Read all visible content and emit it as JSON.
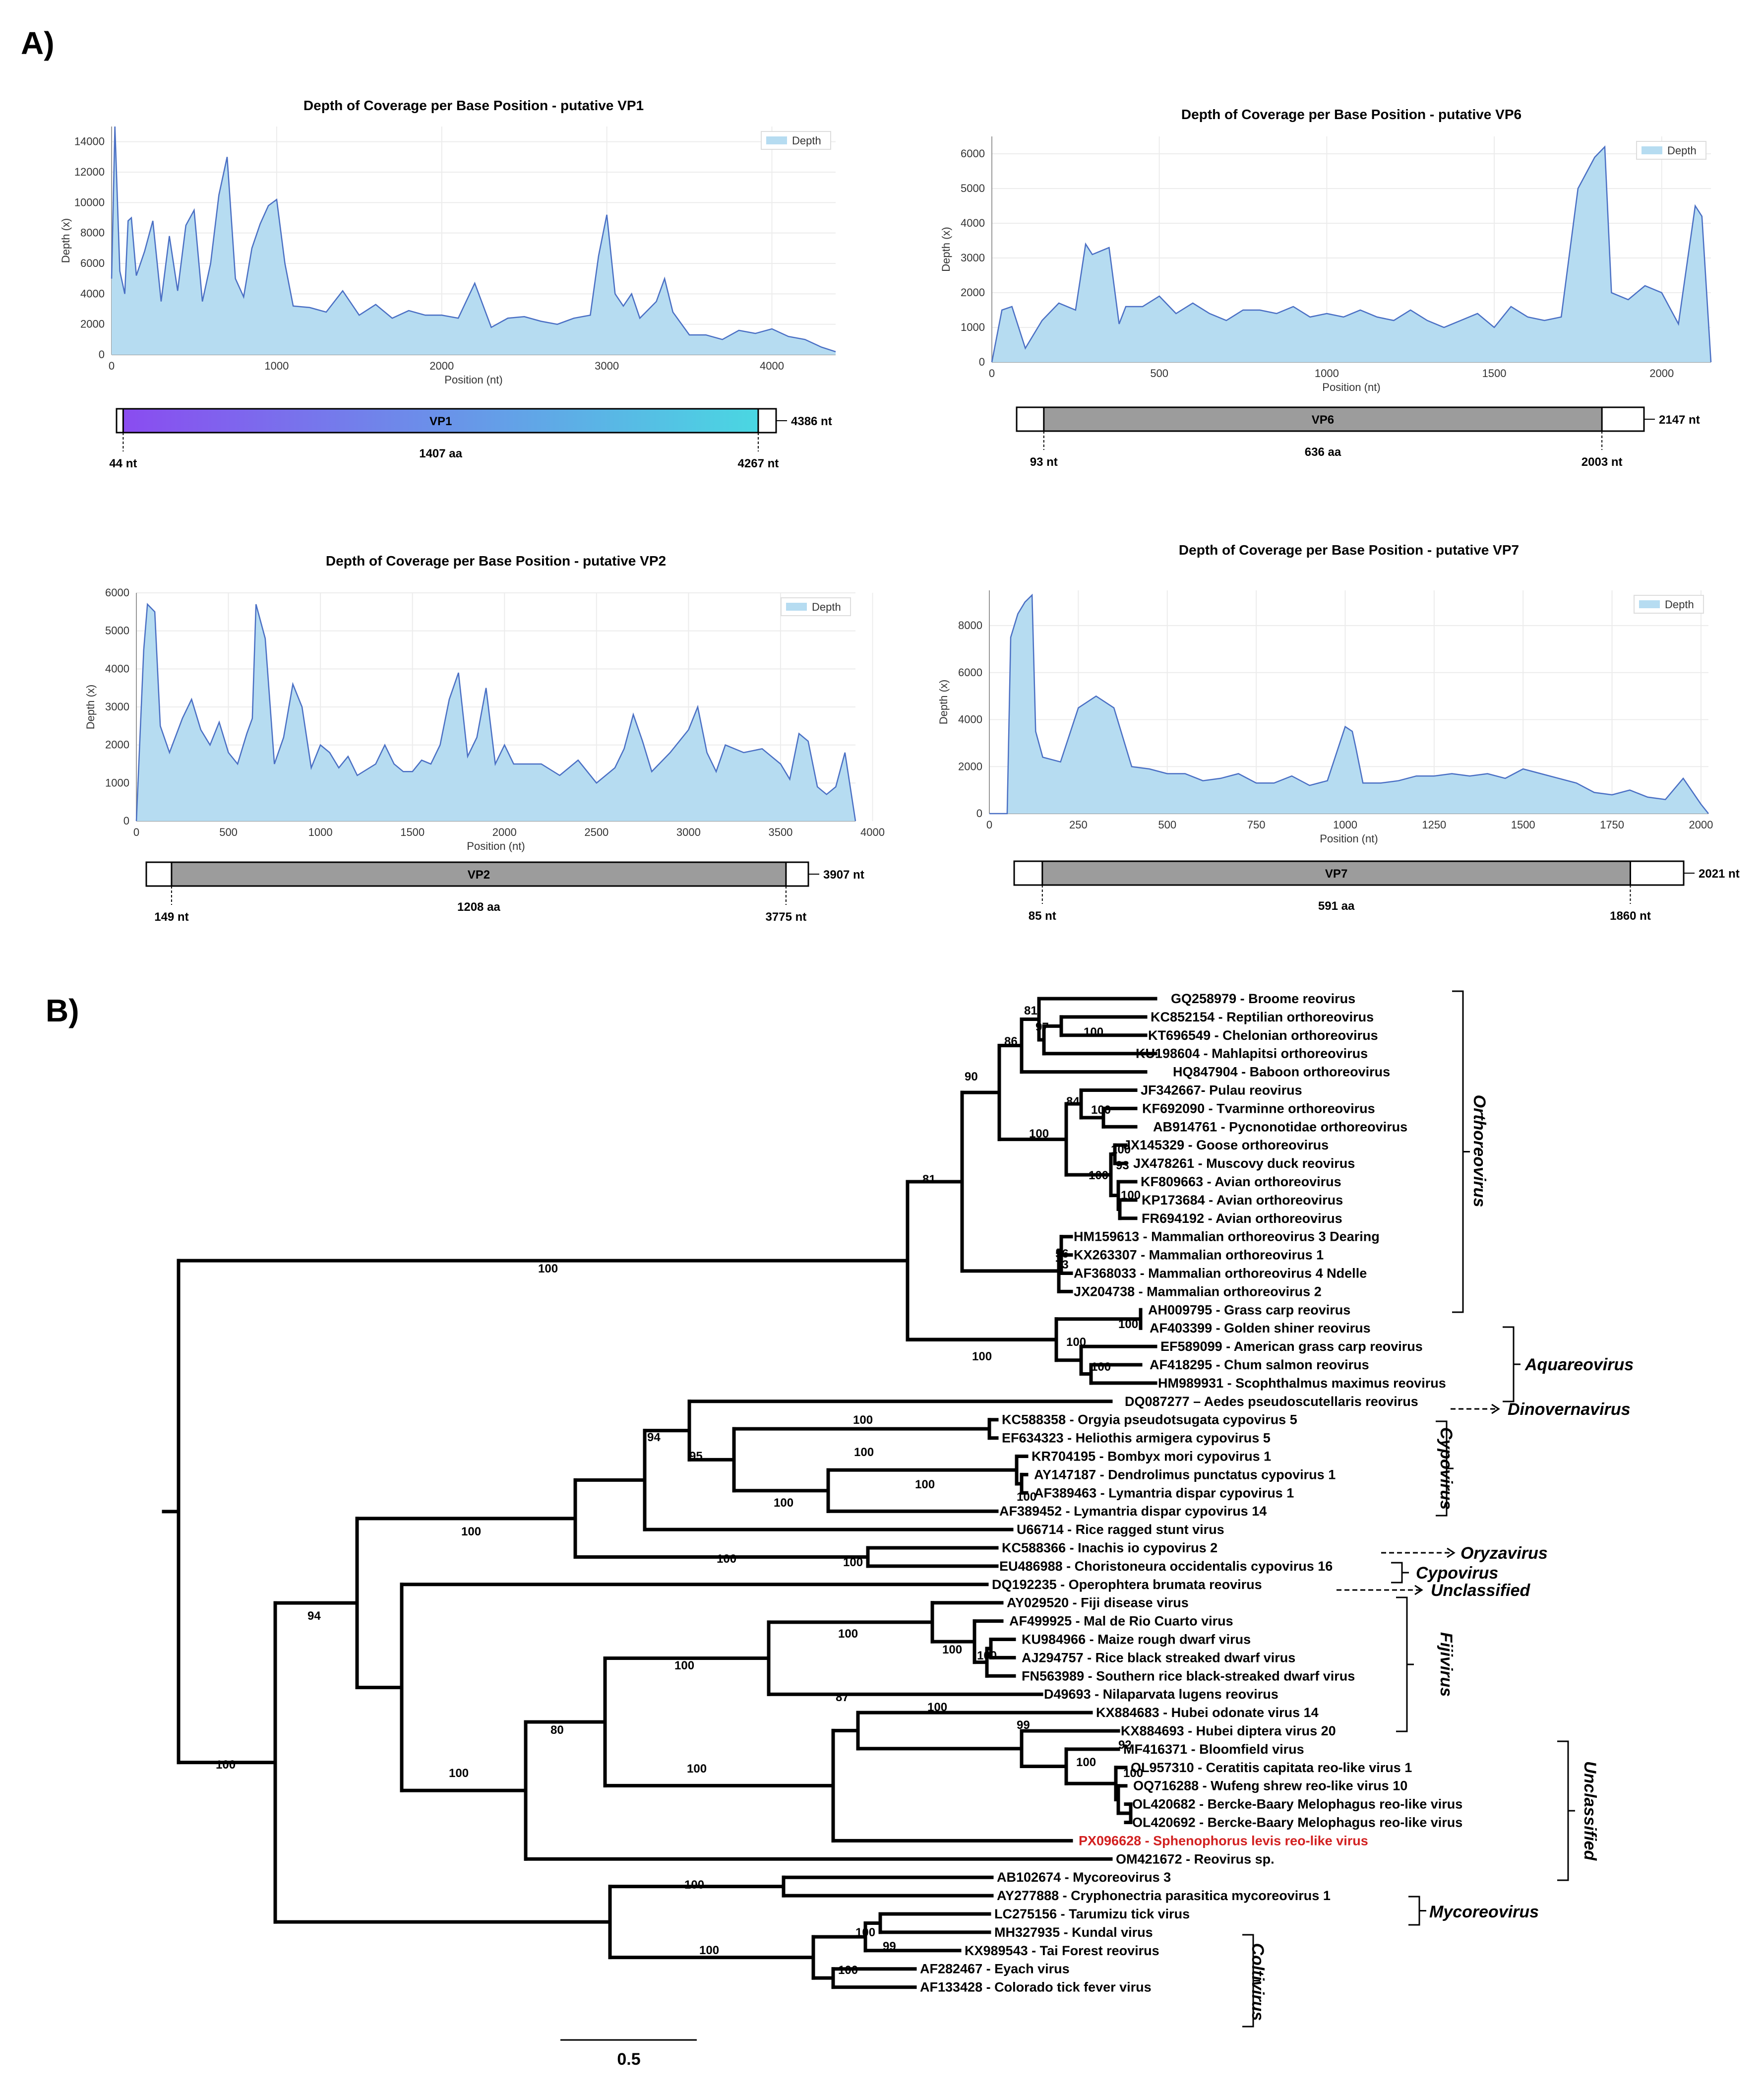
{
  "panel_labels": {
    "a": "A)",
    "b": "B)"
  },
  "chart_data": [
    {
      "type": "area",
      "title": "Depth of Coverage per Base Position - putative VP1",
      "xlabel": "Position (nt)",
      "ylabel": "Depth (x)",
      "legend": "Depth",
      "legend_position": "top-right",
      "xlim": [
        0,
        4386
      ],
      "ylim": [
        0,
        15000
      ],
      "xticks": [
        0,
        1000,
        2000,
        3000,
        4000
      ],
      "yticks": [
        0,
        2000,
        4000,
        6000,
        8000,
        10000,
        12000,
        14000
      ],
      "series": [
        {
          "x": [
            0,
            20,
            50,
            80,
            100,
            120,
            150,
            200,
            250,
            300,
            350,
            400,
            450,
            500,
            550,
            600,
            650,
            700,
            750,
            800,
            850,
            900,
            950,
            1000,
            1050,
            1100,
            1200,
            1300,
            1400,
            1500,
            1600,
            1700,
            1800,
            1900,
            2000,
            2100,
            2200,
            2300,
            2400,
            2500,
            2600,
            2700,
            2800,
            2900,
            2950,
            3000,
            3050,
            3100,
            3150,
            3200,
            3300,
            3350,
            3400,
            3500,
            3600,
            3700,
            3800,
            3900,
            4000,
            4100,
            4200,
            4300,
            4386
          ],
          "y": [
            5000,
            15000,
            5500,
            4000,
            8800,
            9000,
            5200,
            6800,
            8800,
            3500,
            7800,
            4200,
            8500,
            9500,
            3500,
            6000,
            10500,
            13000,
            5000,
            3800,
            7000,
            8600,
            9800,
            10200,
            6000,
            3200,
            3100,
            2800,
            4200,
            2600,
            3300,
            2400,
            2900,
            2600,
            2600,
            2400,
            4700,
            1800,
            2400,
            2500,
            2200,
            2000,
            2400,
            2600,
            6500,
            9200,
            4000,
            3200,
            4000,
            2400,
            3500,
            5000,
            2800,
            1300,
            1300,
            1000,
            1600,
            1400,
            1700,
            1200,
            1000,
            500,
            200
          ]
        }
      ],
      "gene": {
        "name": "VP1",
        "length_label": "4386 nt",
        "orf_start_label": "44 nt",
        "orf_end_label": "4267 nt",
        "aa_label": "1407 aa",
        "orf_start": 44,
        "orf_end": 4267,
        "length": 4386,
        "fill": "gradient"
      }
    },
    {
      "type": "area",
      "title": "Depth of Coverage per Base Position - putative VP6",
      "xlabel": "Position (nt)",
      "ylabel": "Depth (x)",
      "legend": "Depth",
      "legend_position": "top-right",
      "xlim": [
        0,
        2147
      ],
      "ylim": [
        0,
        6500
      ],
      "xticks": [
        0,
        500,
        1000,
        1500,
        2000
      ],
      "yticks": [
        0,
        1000,
        2000,
        3000,
        4000,
        5000,
        6000
      ],
      "series": [
        {
          "x": [
            0,
            30,
            60,
            100,
            150,
            200,
            250,
            280,
            300,
            350,
            380,
            400,
            450,
            500,
            550,
            600,
            650,
            700,
            750,
            800,
            850,
            900,
            950,
            1000,
            1050,
            1100,
            1150,
            1200,
            1250,
            1300,
            1350,
            1400,
            1450,
            1500,
            1550,
            1600,
            1650,
            1700,
            1750,
            1800,
            1830,
            1850,
            1900,
            1950,
            2000,
            2050,
            2100,
            2120,
            2147
          ],
          "y": [
            0,
            1500,
            1600,
            400,
            1200,
            1700,
            1500,
            3400,
            3100,
            3300,
            1100,
            1600,
            1600,
            1900,
            1400,
            1700,
            1400,
            1200,
            1500,
            1500,
            1400,
            1600,
            1300,
            1400,
            1300,
            1500,
            1300,
            1200,
            1500,
            1200,
            1000,
            1200,
            1400,
            1000,
            1600,
            1300,
            1200,
            1300,
            5000,
            5900,
            6200,
            2000,
            1800,
            2200,
            2000,
            1100,
            4500,
            4200,
            0
          ]
        }
      ],
      "gene": {
        "name": "VP6",
        "length_label": "2147 nt",
        "orf_start_label": "93 nt",
        "orf_end_label": "2003 nt",
        "aa_label": "636 aa",
        "orf_start": 93,
        "orf_end": 2003,
        "length": 2147,
        "fill": "gray"
      }
    },
    {
      "type": "area",
      "title": "Depth of Coverage per Base Position - putative VP2",
      "xlabel": "Position (nt)",
      "ylabel": "Depth (x)",
      "legend": "Depth",
      "legend_position": "top-right",
      "xlim": [
        0,
        3907
      ],
      "ylim": [
        0,
        6000
      ],
      "xticks": [
        0,
        500,
        1000,
        1500,
        2000,
        2500,
        3000,
        3500,
        4000
      ],
      "yticks": [
        0,
        1000,
        2000,
        3000,
        4000,
        5000,
        6000
      ],
      "series": [
        {
          "x": [
            0,
            40,
            60,
            100,
            130,
            180,
            250,
            300,
            350,
            400,
            450,
            500,
            550,
            600,
            630,
            650,
            700,
            750,
            800,
            850,
            900,
            950,
            1000,
            1050,
            1100,
            1150,
            1200,
            1300,
            1350,
            1400,
            1450,
            1500,
            1550,
            1600,
            1650,
            1700,
            1750,
            1800,
            1850,
            1900,
            1950,
            2000,
            2050,
            2100,
            2200,
            2300,
            2400,
            2500,
            2600,
            2650,
            2700,
            2750,
            2800,
            2900,
            3000,
            3050,
            3100,
            3150,
            3200,
            3300,
            3400,
            3500,
            3550,
            3600,
            3650,
            3700,
            3750,
            3800,
            3850,
            3907
          ],
          "y": [
            0,
            4500,
            5700,
            5500,
            2500,
            1800,
            2700,
            3200,
            2400,
            2000,
            2600,
            1800,
            1500,
            2300,
            2700,
            5700,
            4800,
            1500,
            2200,
            3600,
            3000,
            1400,
            2000,
            1800,
            1400,
            1700,
            1200,
            1500,
            2000,
            1500,
            1300,
            1300,
            1600,
            1500,
            2000,
            3200,
            3900,
            1700,
            2200,
            3500,
            1500,
            2000,
            1500,
            1500,
            1500,
            1200,
            1600,
            1000,
            1400,
            1900,
            2800,
            2100,
            1300,
            1800,
            2400,
            3000,
            1800,
            1300,
            2000,
            1800,
            1900,
            1500,
            1100,
            2300,
            2100,
            900,
            700,
            900,
            1800,
            0
          ]
        }
      ],
      "gene": {
        "name": "VP2",
        "length_label": "3907 nt",
        "orf_start_label": "149 nt",
        "orf_end_label": "3775 nt",
        "aa_label": "1208 aa",
        "orf_start": 149,
        "orf_end": 3775,
        "length": 3907,
        "fill": "gray"
      }
    },
    {
      "type": "area",
      "title": "Depth of Coverage per Base Position - putative VP7",
      "xlabel": "Position (nt)",
      "ylabel": "Depth (x)",
      "legend": "Depth",
      "legend_position": "top-right",
      "xlim": [
        0,
        2021
      ],
      "ylim": [
        0,
        9500
      ],
      "xticks": [
        0,
        250,
        500,
        750,
        1000,
        1250,
        1500,
        1750,
        2000
      ],
      "yticks": [
        0,
        2000,
        4000,
        6000,
        8000
      ],
      "series": [
        {
          "x": [
            0,
            50,
            60,
            80,
            100,
            120,
            130,
            150,
            200,
            250,
            300,
            350,
            400,
            450,
            500,
            550,
            600,
            650,
            700,
            750,
            800,
            850,
            900,
            950,
            1000,
            1020,
            1030,
            1050,
            1100,
            1150,
            1200,
            1250,
            1300,
            1350,
            1400,
            1450,
            1500,
            1550,
            1600,
            1650,
            1700,
            1750,
            1800,
            1850,
            1900,
            1950,
            2000,
            2021
          ],
          "y": [
            0,
            0,
            7500,
            8500,
            9000,
            9300,
            3500,
            2400,
            2200,
            4500,
            5000,
            4500,
            2000,
            1900,
            1700,
            1700,
            1400,
            1500,
            1700,
            1300,
            1300,
            1600,
            1200,
            1400,
            3700,
            3500,
            2800,
            1300,
            1300,
            1400,
            1600,
            1600,
            1700,
            1600,
            1700,
            1500,
            1900,
            1700,
            1500,
            1300,
            900,
            800,
            1000,
            700,
            600,
            1500,
            400,
            0
          ]
        }
      ],
      "gene": {
        "name": "VP7",
        "length_label": "2021 nt",
        "orf_start_label": "85 nt",
        "orf_end_label": "1860 nt",
        "aa_label": "591 aa",
        "orf_start": 85,
        "orf_end": 1860,
        "length": 2021,
        "fill": "gray"
      }
    }
  ],
  "tree": {
    "type": "phylogenetic-tree",
    "scale_bar_label": "0.5",
    "highlight_color": "#d22020",
    "taxa": [
      "GQ258979 - Broome reovirus",
      "KC852154 - Reptilian orthoreovirus",
      "KT696549 - Chelonian orthoreovirus",
      "KU198604 - Mahlapitsi orthoreovirus",
      "HQ847904 - Baboon orthoreovirus",
      "JF342667- Pulau reovirus",
      "KF692090 - Tvarminne orthoreovirus",
      "AB914761 - Pycnonotidae orthoreovirus",
      "JX145329 - Goose orthoreovirus",
      "JX478261 - Muscovy duck reovirus",
      "KF809663 - Avian orthoreovirus",
      "KP173684 - Avian orthoreovirus",
      "FR694192 - Avian orthoreovirus",
      "HM159613 - Mammalian orthoreovirus 3 Dearing",
      "KX263307 - Mammalian orthoreovirus 1",
      "AF368033 - Mammalian orthoreovirus 4 Ndelle",
      "JX204738 - Mammalian orthoreovirus 2",
      "AH009795 - Grass carp reovirus",
      "AF403399 - Golden shiner reovirus",
      "EF589099 - American grass carp reovirus",
      "AF418295 - Chum salmon reovirus",
      "HM989931 - Scophthalmus maximus reovirus",
      "DQ087277 – Aedes pseudoscutellaris reovirus",
      "KC588358 - Orgyia pseudotsugata cypovirus 5",
      "EF634323 - Heliothis armigera cypovirus 5",
      "KR704195 - Bombyx mori cypovirus 1",
      "AY147187 - Dendrolimus punctatus cypovirus 1",
      "AF389463 - Lymantria dispar cypovirus 1",
      "AF389452 - Lymantria dispar cypovirus 14",
      "U66714 - Rice ragged stunt virus",
      "KC588366 - Inachis io cypovirus 2",
      "EU486988 - Choristoneura occidentalis cypovirus 16",
      "DQ192235 - Operophtera brumata reovirus",
      "AY029520 - Fiji disease virus",
      "AF499925 - Mal de Rio Cuarto virus",
      "KU984966 - Maize rough dwarf virus",
      "AJ294757 - Rice black streaked dwarf virus",
      "FN563989 - Southern rice black-streaked dwarf virus",
      "D49693 - Nilaparvata lugens reovirus",
      "KX884683 - Hubei odonate virus 14",
      "KX884693 - Hubei diptera virus 20",
      "MF416371 - Bloomfield virus",
      "OL957310 - Ceratitis capitata reo-like virus 1",
      "OQ716288 - Wufeng shrew reo-like virus 10",
      "OL420682 - Bercke-Baary Melophagus reo-like virus",
      "OL420692 - Bercke-Baary Melophagus reo-like virus",
      "PX096628 - Sphenophorus levis reo-like virus",
      "OM421672 - Reovirus sp.",
      "AB102674 - Mycoreovirus 3",
      "AY277888 - Cryphonectria parasitica mycoreovirus 1",
      "LC275156 - Tarumizu tick virus",
      "MH327935 - Kundal virus",
      "KX989543 - Tai Forest reovirus",
      "AF282467 - Eyach virus",
      "AF133428 - Colorado tick fever virus"
    ],
    "highlighted_taxon_index": 46,
    "bootstrap_values": [
      "81",
      "97",
      "100",
      "86",
      "90",
      "84",
      "100",
      "100",
      "100",
      "93",
      "100",
      "100",
      "81",
      "56",
      "73",
      "100",
      "100",
      "100",
      "100",
      "100",
      "100",
      "94",
      "100",
      "95",
      "100",
      "100",
      "100",
      "100",
      "100",
      "100",
      "94",
      "100",
      "100",
      "100",
      "100",
      "87",
      "100",
      "99",
      "92",
      "100",
      "100",
      "100",
      "80",
      "100",
      "100",
      "100",
      "100",
      "99",
      "100",
      "100"
    ],
    "clades": [
      {
        "name": "Orthoreovirus",
        "style": "bracket"
      },
      {
        "name": "Aquareovirus",
        "style": "bracket"
      },
      {
        "name": "Dinovernavirus",
        "style": "arrow"
      },
      {
        "name": "Cypovirus",
        "style": "bracket-vertical"
      },
      {
        "name": "Oryzavirus",
        "style": "arrow"
      },
      {
        "name": "Cypovirus",
        "style": "bracket"
      },
      {
        "name": "Unclassified",
        "style": "arrow"
      },
      {
        "name": "Fijivirus",
        "style": "bracket-vertical"
      },
      {
        "name": "Unclassified",
        "style": "bracket-vertical"
      },
      {
        "name": "Mycoreovirus",
        "style": "bracket"
      },
      {
        "name": "Coltivirus",
        "style": "bracket-vertical"
      }
    ]
  }
}
